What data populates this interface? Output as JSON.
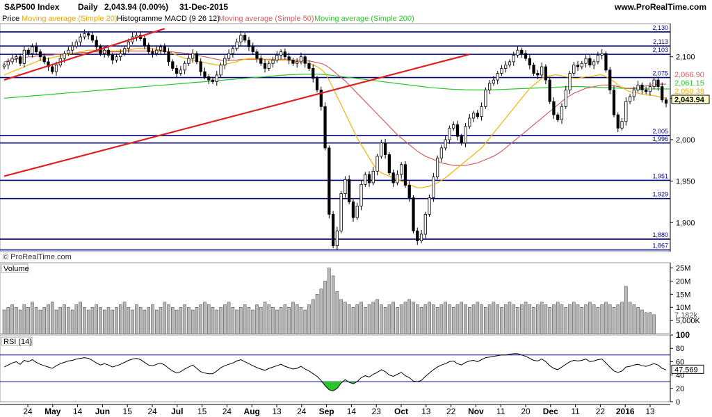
{
  "header": {
    "symbol": "S&P500 Index",
    "period": "Daily",
    "last": "2,043.94 (0.00%)",
    "date": "31-Dec-2015",
    "site": "www.ProRealTime.com"
  },
  "legend": {
    "price": "Price",
    "ma20": "Moving average (Simple 20)",
    "macd": "Histogramme MACD (9 26 12)",
    "ma50": "Moving average (Simple 50)",
    "ma200": "Moving average (Simple 200)"
  },
  "colors": {
    "ma20": "#f0b400",
    "ma50": "#d06060",
    "ma200": "#2ac62a",
    "trend": "#e02020",
    "level": "#000080",
    "panel_bg": "#ffffff"
  },
  "watermark": "© ProRealTime.com",
  "chart_data": [
    {
      "type": "candlestick",
      "panel": "price",
      "y_axis_ticks": [
        "2,100",
        "2,050",
        "2,000",
        "1,950",
        "1,900"
      ],
      "ylim": [
        1865,
        2140
      ],
      "horizontal_levels": [
        {
          "label": "2,130",
          "value": 2130
        },
        {
          "label": "2,113",
          "value": 2113
        },
        {
          "label": "2,103",
          "value": 2103
        },
        {
          "label": "2,075",
          "value": 2075
        },
        {
          "label": "2,005",
          "value": 2005
        },
        {
          "label": "1,996",
          "value": 1996
        },
        {
          "label": "1,951",
          "value": 1951
        },
        {
          "label": "1,929",
          "value": 1929
        },
        {
          "label": "1,880",
          "value": 1880
        },
        {
          "label": "1,867",
          "value": 1867
        }
      ],
      "value_tags": [
        {
          "label": "2,066.90",
          "series": "ma50",
          "value": 2066.9
        },
        {
          "label": "2,061.15",
          "series": "ma200",
          "value": 2061.15
        },
        {
          "label": "2,050.38",
          "series": "ma20",
          "value": 2050.38
        },
        {
          "label": "2,043.94",
          "series": "price",
          "value": 2043.94
        }
      ],
      "closes": [
        2090,
        2094,
        2098,
        2100,
        2092,
        2108,
        2104,
        2112,
        2106,
        2100,
        2094,
        2088,
        2082,
        2090,
        2098,
        2104,
        2108,
        2113,
        2118,
        2124,
        2128,
        2126,
        2120,
        2112,
        2104,
        2108,
        2102,
        2096,
        2100,
        2104,
        2110,
        2118,
        2124,
        2126,
        2122,
        2114,
        2106,
        2104,
        2108,
        2112,
        2106,
        2094,
        2086,
        2080,
        2084,
        2092,
        2098,
        2104,
        2094,
        2082,
        2076,
        2072,
        2070,
        2078,
        2090,
        2098,
        2104,
        2110,
        2118,
        2126,
        2120,
        2112,
        2106,
        2098,
        2092,
        2086,
        2092,
        2096,
        2102,
        2106,
        2100,
        2096,
        2092,
        2094,
        2100,
        2092,
        2086,
        2074,
        2060,
        2040,
        1990,
        1910,
        1872,
        1890,
        1935,
        1952,
        1925,
        1906,
        1920,
        1946,
        1958,
        1948,
        1962,
        1980,
        1996,
        1982,
        1960,
        1948,
        1958,
        1970,
        1945,
        1930,
        1890,
        1878,
        1886,
        1910,
        1930,
        1955,
        1978,
        1990,
        2000,
        2014,
        2018,
        2004,
        1996,
        2016,
        2026,
        2032,
        2028,
        2040,
        2060,
        2068,
        2072,
        2080,
        2086,
        2090,
        2094,
        2102,
        2108,
        2104,
        2098,
        2090,
        2080,
        2078,
        2088,
        2072,
        2046,
        2030,
        2024,
        2040,
        2060,
        2080,
        2090,
        2088,
        2092,
        2098,
        2090,
        2094,
        2102,
        2104,
        2084,
        2060,
        2030,
        2014,
        2022,
        2046,
        2052,
        2060,
        2066,
        2060,
        2058,
        2064,
        2072,
        2064,
        2048,
        2044
      ],
      "ma20": [
        2078,
        2080,
        2082,
        2084,
        2086,
        2088,
        2090,
        2092,
        2094,
        2096,
        2097,
        2098,
        2099,
        2100,
        2101,
        2102,
        2103,
        2104,
        2105,
        2106,
        2107,
        2108,
        2108,
        2108,
        2108,
        2108,
        2107,
        2107,
        2107,
        2107,
        2108,
        2108,
        2109,
        2110,
        2110,
        2110,
        2110,
        2110,
        2109,
        2108,
        2107,
        2106,
        2104,
        2102,
        2100,
        2098,
        2097,
        2096,
        2095,
        2094,
        2093,
        2092,
        2091,
        2090,
        2090,
        2091,
        2092,
        2093,
        2094,
        2096,
        2097,
        2098,
        2098,
        2098,
        2098,
        2097,
        2096,
        2096,
        2096,
        2096,
        2096,
        2096,
        2095,
        2094,
        2094,
        2093,
        2092,
        2090,
        2088,
        2085,
        2080,
        2072,
        2062,
        2052,
        2042,
        2032,
        2022,
        2012,
        2002,
        1994,
        1986,
        1978,
        1970,
        1964,
        1960,
        1958,
        1956,
        1954,
        1952,
        1950,
        1948,
        1946,
        1944,
        1942,
        1942,
        1943,
        1944,
        1946,
        1948,
        1951,
        1954,
        1958,
        1962,
        1966,
        1970,
        1974,
        1978,
        1982,
        1986,
        1990,
        1996,
        2002,
        2008,
        2014,
        2020,
        2026,
        2032,
        2038,
        2044,
        2050,
        2056,
        2062,
        2066,
        2070,
        2074,
        2076,
        2077,
        2078,
        2078,
        2077,
        2076,
        2075,
        2074,
        2074,
        2075,
        2076,
        2076,
        2077,
        2078,
        2078,
        2076,
        2073,
        2070,
        2066,
        2063,
        2060,
        2058,
        2057,
        2056,
        2055,
        2054,
        2054,
        2053,
        2052,
        2051,
        2050
      ],
      "ma50": [
        2094,
        2095,
        2096,
        2097,
        2098,
        2099,
        2100,
        2100,
        2101,
        2101,
        2102,
        2102,
        2102,
        2103,
        2103,
        2103,
        2104,
        2104,
        2104,
        2105,
        2105,
        2105,
        2106,
        2106,
        2106,
        2106,
        2106,
        2106,
        2106,
        2106,
        2107,
        2107,
        2107,
        2107,
        2107,
        2107,
        2107,
        2107,
        2107,
        2107,
        2106,
        2106,
        2106,
        2105,
        2105,
        2104,
        2104,
        2103,
        2102,
        2101,
        2100,
        2099,
        2098,
        2097,
        2096,
        2096,
        2096,
        2096,
        2096,
        2097,
        2097,
        2097,
        2097,
        2097,
        2097,
        2097,
        2097,
        2097,
        2097,
        2097,
        2097,
        2097,
        2096,
        2096,
        2096,
        2095,
        2095,
        2094,
        2093,
        2092,
        2090,
        2087,
        2083,
        2079,
        2075,
        2071,
        2066,
        2061,
        2056,
        2051,
        2046,
        2041,
        2036,
        2031,
        2026,
        2021,
        2016,
        2011,
        2006,
        2002,
        1998,
        1994,
        1990,
        1986,
        1983,
        1980,
        1978,
        1976,
        1974,
        1972,
        1971,
        1970,
        1969,
        1969,
        1969,
        1969,
        1970,
        1971,
        1972,
        1974,
        1976,
        1978,
        1980,
        1983,
        1986,
        1990,
        1994,
        1998,
        2002,
        2006,
        2010,
        2014,
        2018,
        2022,
        2026,
        2030,
        2034,
        2038,
        2042,
        2046,
        2050,
        2053,
        2056,
        2058,
        2060,
        2062,
        2063,
        2064,
        2065,
        2066,
        2066,
        2066,
        2065,
        2064,
        2063,
        2062,
        2062,
        2062,
        2063,
        2064,
        2065,
        2066,
        2066,
        2067,
        2067,
        2067
      ],
      "ma200": [
        2050,
        2050.4,
        2050.8,
        2051.2,
        2051.6,
        2052,
        2052.4,
        2052.8,
        2053.2,
        2053.6,
        2054,
        2054.4,
        2054.8,
        2055.2,
        2055.6,
        2056,
        2056.4,
        2056.8,
        2057.2,
        2057.6,
        2058,
        2058.4,
        2058.8,
        2059.2,
        2059.6,
        2060,
        2060.4,
        2060.8,
        2061.2,
        2061.6,
        2062,
        2062.4,
        2062.8,
        2063.2,
        2063.6,
        2064,
        2064.4,
        2064.8,
        2065.2,
        2065.6,
        2066,
        2066.4,
        2066.8,
        2067.2,
        2067.6,
        2068,
        2068.4,
        2068.8,
        2069.2,
        2069.6,
        2070,
        2070.4,
        2070.8,
        2071.2,
        2071.6,
        2072,
        2072.4,
        2072.8,
        2073.2,
        2073.6,
        2074,
        2074.4,
        2074.8,
        2075.2,
        2075.6,
        2076,
        2076.4,
        2076.8,
        2077.2,
        2077.6,
        2078,
        2078.2,
        2078.4,
        2078.6,
        2078.8,
        2079,
        2079,
        2079,
        2079,
        2078.8,
        2078.4,
        2078,
        2077.4,
        2076.8,
        2076.2,
        2075.6,
        2075,
        2074.4,
        2073.8,
        2073.2,
        2072.6,
        2072,
        2071.4,
        2070.8,
        2070.2,
        2069.6,
        2069,
        2068.4,
        2067.8,
        2067.2,
        2066.6,
        2066,
        2065.4,
        2064.8,
        2064.2,
        2063.6,
        2063,
        2062.6,
        2062.2,
        2061.8,
        2061.4,
        2061,
        2060.8,
        2060.6,
        2060.4,
        2060.2,
        2060,
        2060,
        2060,
        2060,
        2060,
        2060,
        2060.2,
        2060.4,
        2060.6,
        2060.8,
        2061,
        2061.2,
        2061.4,
        2061.6,
        2061.8,
        2062,
        2062.2,
        2062.4,
        2062.6,
        2062.8,
        2063,
        2063.2,
        2063.4,
        2063.6,
        2063.8,
        2064,
        2064,
        2064,
        2064,
        2063.8,
        2063.6,
        2063.4,
        2063.2,
        2063,
        2062.8,
        2062.6,
        2062.4,
        2062.2,
        2062,
        2061.8,
        2061.6,
        2061.4,
        2061.2,
        2061.2,
        2061.2,
        2061.2,
        2061.2,
        2061.2,
        2061.15,
        2061.15,
        2061.15
      ],
      "trend_lines": [
        {
          "from": [
            0,
            2072
          ],
          "to": [
            40,
            2134
          ]
        },
        {
          "from": [
            0,
            1956
          ],
          "to": [
            116,
            2103
          ]
        }
      ]
    },
    {
      "type": "bar",
      "panel": "volume",
      "title": "Volume",
      "y_axis_ticks": [
        "25M",
        "20M",
        "15M",
        "10M",
        "5,000K"
      ],
      "ylim": [
        0,
        27
      ],
      "last_value_label": "7,182k",
      "values_millions": [
        9,
        10,
        11,
        10,
        9,
        11,
        10,
        12,
        10,
        9,
        10,
        11,
        12,
        9,
        10,
        11,
        10,
        9,
        11,
        12,
        10,
        9,
        10,
        11,
        10,
        9,
        10,
        9,
        10,
        11,
        12,
        10,
        9,
        11,
        10,
        9,
        10,
        11,
        9,
        10,
        12,
        11,
        10,
        9,
        10,
        11,
        10,
        9,
        10,
        11,
        12,
        11,
        10,
        9,
        10,
        11,
        12,
        10,
        9,
        10,
        11,
        10,
        9,
        11,
        10,
        12,
        11,
        10,
        9,
        10,
        11,
        10,
        12,
        11,
        10,
        9,
        11,
        13,
        15,
        17,
        20,
        25,
        22,
        16,
        13,
        12,
        11,
        10,
        11,
        12,
        10,
        11,
        12,
        13,
        11,
        10,
        11,
        12,
        10,
        11,
        12,
        13,
        12,
        11,
        10,
        11,
        12,
        11,
        10,
        11,
        12,
        11,
        10,
        11,
        12,
        11,
        10,
        11,
        12,
        11,
        10,
        11,
        12,
        11,
        10,
        11,
        12,
        11,
        10,
        11,
        12,
        11,
        10,
        11,
        12,
        11,
        10,
        11,
        12,
        11,
        10,
        11,
        12,
        11,
        10,
        11,
        12,
        11,
        10,
        11,
        12,
        11,
        10,
        11,
        12,
        18,
        12,
        11,
        10,
        9,
        8,
        8,
        7.2
      ]
    },
    {
      "type": "line",
      "panel": "rsi",
      "title": "RSI (14)",
      "y_axis_ticks": [
        "100",
        "80",
        "60",
        "40",
        "20",
        "0"
      ],
      "ylim": [
        0,
        100
      ],
      "levels": [
        70,
        30
      ],
      "last_value_label": "47.569",
      "values": [
        52,
        55,
        58,
        60,
        56,
        62,
        60,
        63,
        59,
        56,
        54,
        52,
        50,
        54,
        57,
        59,
        61,
        62,
        64,
        65,
        66,
        65,
        62,
        58,
        55,
        57,
        55,
        52,
        54,
        56,
        59,
        62,
        64,
        65,
        63,
        59,
        55,
        54,
        56,
        58,
        55,
        50,
        46,
        43,
        45,
        49,
        52,
        55,
        50,
        45,
        43,
        42,
        42,
        46,
        51,
        54,
        56,
        58,
        61,
        63,
        60,
        57,
        54,
        51,
        49,
        47,
        50,
        52,
        54,
        56,
        53,
        51,
        49,
        50,
        53,
        49,
        46,
        42,
        38,
        32,
        24,
        18,
        16,
        20,
        28,
        33,
        29,
        27,
        30,
        36,
        39,
        37,
        41,
        44,
        48,
        45,
        40,
        38,
        41,
        44,
        39,
        36,
        31,
        30,
        32,
        38,
        43,
        48,
        52,
        55,
        57,
        60,
        61,
        57,
        55,
        59,
        61,
        62,
        60,
        63,
        66,
        67,
        68,
        69,
        70,
        70,
        71,
        72,
        72,
        70,
        68,
        65,
        62,
        61,
        64,
        60,
        54,
        50,
        48,
        52,
        56,
        60,
        62,
        61,
        62,
        64,
        60,
        61,
        63,
        64,
        58,
        52,
        46,
        44,
        46,
        52,
        53,
        55,
        56,
        54,
        53,
        55,
        57,
        55,
        50,
        47.569
      ],
      "label_at_85": "80",
      "label_at_35": "40"
    }
  ],
  "x_axis": {
    "labels": [
      {
        "text": "24",
        "bold": false
      },
      {
        "text": "May",
        "bold": true
      },
      {
        "text": "14",
        "bold": false
      },
      {
        "text": "Jun",
        "bold": true
      },
      {
        "text": "15",
        "bold": false
      },
      {
        "text": "24",
        "bold": false
      },
      {
        "text": "Jul",
        "bold": true
      },
      {
        "text": "15",
        "bold": false
      },
      {
        "text": "24",
        "bold": false
      },
      {
        "text": "Aug",
        "bold": true
      },
      {
        "text": "13",
        "bold": false
      },
      {
        "text": "24",
        "bold": false
      },
      {
        "text": "Sep",
        "bold": true
      },
      {
        "text": "14",
        "bold": false
      },
      {
        "text": "23",
        "bold": false
      },
      {
        "text": "Oct",
        "bold": true
      },
      {
        "text": "13",
        "bold": false
      },
      {
        "text": "22",
        "bold": false
      },
      {
        "text": "Nov",
        "bold": true
      },
      {
        "text": "11",
        "bold": false
      },
      {
        "text": "20",
        "bold": false
      },
      {
        "text": "Dec",
        "bold": true
      },
      {
        "text": "11",
        "bold": false
      },
      {
        "text": "22",
        "bold": false
      },
      {
        "text": "2016",
        "bold": true
      },
      {
        "text": "13",
        "bold": false
      }
    ]
  }
}
